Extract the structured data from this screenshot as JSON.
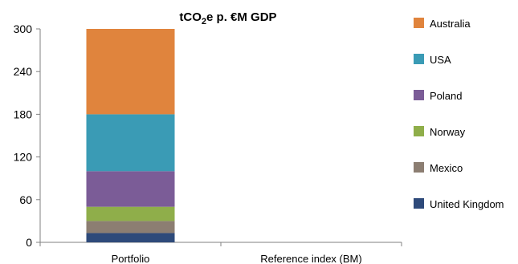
{
  "chart_data": {
    "type": "bar",
    "stacked": true,
    "title": "tCO",
    "title_subscript": "2",
    "title_suffix": "e p. €M GDP",
    "categories": [
      "Portfolio",
      "Reference index (BM)"
    ],
    "series": [
      {
        "name": "United Kingdom",
        "color": "#2e4a7a",
        "values": [
          13,
          0
        ]
      },
      {
        "name": "Mexico",
        "color": "#8c7e72",
        "values": [
          17,
          0
        ]
      },
      {
        "name": "Norway",
        "color": "#8fae4a",
        "values": [
          20,
          0
        ]
      },
      {
        "name": "Poland",
        "color": "#7b5c97",
        "values": [
          50,
          0
        ]
      },
      {
        "name": "USA",
        "color": "#3a9bb5",
        "values": [
          80,
          0
        ]
      },
      {
        "name": "Australia",
        "color": "#e0843d",
        "values": [
          120,
          0
        ]
      }
    ],
    "ylim": [
      0,
      300
    ],
    "yticks": [
      "0",
      "60",
      "120",
      "180",
      "240",
      "300"
    ],
    "grid": false,
    "legend_position": "right"
  }
}
